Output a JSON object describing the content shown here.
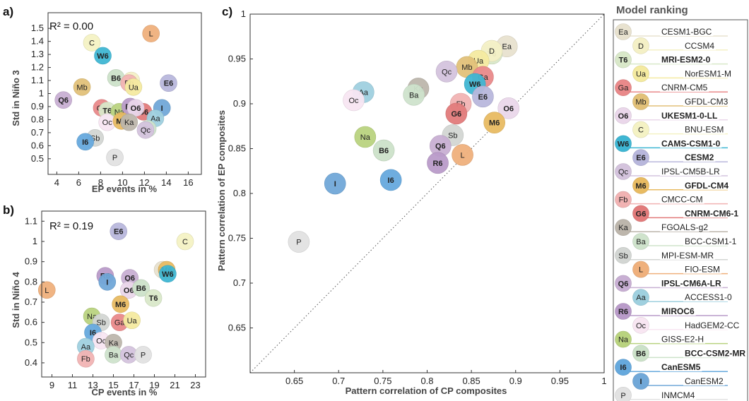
{
  "colors": {
    "Ea": "#e8e2cf",
    "D": "#f4f0c6",
    "T6": "#d9e8c9",
    "Ua": "#f4eaa0",
    "Ga": "#e9898a",
    "Mb": "#e2c179",
    "O6": "#ead7ea",
    "C": "#f4f2c4",
    "W6": "#3fb6d3",
    "E6": "#b8b7dc",
    "Qc": "#d4c3dd",
    "M6": "#e8bb62",
    "Fb": "#f1b3b3",
    "G6": "#e27b7b",
    "Ka": "#bdb6ac",
    "Ba": "#cfe3cc",
    "Sb": "#d3d6d3",
    "L": "#efb07c",
    "Q6": "#c8afd3",
    "Aa": "#9fd0df",
    "R6": "#b99bc9",
    "Oc": "#f8e6f2",
    "Na": "#b9d37f",
    "B6": "#cce2c9",
    "I6": "#66a9dd",
    "I": "#71a8d8",
    "P": "#e2e2e2"
  },
  "legend": {
    "title": "Model ranking",
    "items": [
      {
        "code": "Ea",
        "name": "CESM1-BGC",
        "bold": false
      },
      {
        "code": "D",
        "name": "CCSM4",
        "bold": false
      },
      {
        "code": "T6",
        "name": "MRI-ESM2-0",
        "bold": true
      },
      {
        "code": "Ua",
        "name": "NorESM1-M",
        "bold": false
      },
      {
        "code": "Ga",
        "name": "CNRM-CM5",
        "bold": false
      },
      {
        "code": "Mb",
        "name": "GFDL-CM3",
        "bold": false
      },
      {
        "code": "O6",
        "name": "UKESM1-0-LL",
        "bold": true
      },
      {
        "code": "C",
        "name": "BNU-ESM",
        "bold": false
      },
      {
        "code": "W6",
        "name": "CAMS-CSM1-0",
        "bold": true
      },
      {
        "code": "E6",
        "name": "CESM2",
        "bold": true
      },
      {
        "code": "Qc",
        "name": "IPSL-CM5B-LR",
        "bold": false
      },
      {
        "code": "M6",
        "name": "GFDL-CM4",
        "bold": true
      },
      {
        "code": "Fb",
        "name": "CMCC-CM",
        "bold": false
      },
      {
        "code": "G6",
        "name": "CNRM-CM6-1",
        "bold": true
      },
      {
        "code": "Ka",
        "name": "FGOALS-g2",
        "bold": false
      },
      {
        "code": "Ba",
        "name": "BCC-CSM1-1",
        "bold": false
      },
      {
        "code": "Sb",
        "name": "MPI-ESM-MR",
        "bold": false
      },
      {
        "code": "L",
        "name": "FIO-ESM",
        "bold": false
      },
      {
        "code": "Q6",
        "name": "IPSL-CM6A-LR",
        "bold": true
      },
      {
        "code": "Aa",
        "name": "ACCESS1-0",
        "bold": false
      },
      {
        "code": "R6",
        "name": "MIROC6",
        "bold": true
      },
      {
        "code": "Oc",
        "name": "HadGEM2-CC",
        "bold": false
      },
      {
        "code": "Na",
        "name": "GISS-E2-H",
        "bold": false
      },
      {
        "code": "B6",
        "name": "BCC-CSM2-MR",
        "bold": true
      },
      {
        "code": "I6",
        "name": "CanESM5",
        "bold": true
      },
      {
        "code": "I",
        "name": "CanESM2",
        "bold": false
      },
      {
        "code": "P",
        "name": "INMCM4",
        "bold": false
      }
    ]
  },
  "chart_data": [
    {
      "type": "scatter",
      "panel_label": "a)",
      "annotation": "R² = 0.00",
      "xlabel": "EP events in %",
      "ylabel": "Std in Niño 3",
      "xlim": [
        3.2,
        17.2
      ],
      "ylim": [
        0.38,
        1.62
      ],
      "xticks": [
        4,
        6,
        8,
        10,
        12,
        14,
        16
      ],
      "yticks": [
        0.5,
        0.6,
        0.7,
        0.8,
        0.9,
        1.0,
        1.1,
        1.2,
        1.3,
        1.4,
        1.5
      ],
      "ytick_labels": [
        "0.5",
        "0.6",
        "0.7",
        "0.8",
        "0.9",
        "1",
        "1.1",
        "1.2",
        "1.3",
        "1.4",
        "1.5"
      ],
      "points": [
        {
          "code": "Mb",
          "x": 6.3,
          "y": 1.05
        },
        {
          "code": "Q6",
          "x": 4.6,
          "y": 0.95
        },
        {
          "code": "C",
          "x": 7.2,
          "y": 1.39
        },
        {
          "code": "W6",
          "x": 8.2,
          "y": 1.29
        },
        {
          "code": "L",
          "x": 12.6,
          "y": 1.46
        },
        {
          "code": "B6",
          "x": 9.4,
          "y": 1.12
        },
        {
          "code": "D",
          "x": 10.8,
          "y": 1.1
        },
        {
          "code": "Fb",
          "x": 10.6,
          "y": 1.08
        },
        {
          "code": "Ua",
          "x": 11.0,
          "y": 1.05
        },
        {
          "code": "E6",
          "x": 14.2,
          "y": 1.08
        },
        {
          "code": "Ga",
          "x": 8.1,
          "y": 0.89
        },
        {
          "code": "T6",
          "x": 8.6,
          "y": 0.87
        },
        {
          "code": "Na",
          "x": 9.7,
          "y": 0.86
        },
        {
          "code": "G6",
          "x": 11.9,
          "y": 0.86
        },
        {
          "code": "R6",
          "x": 10.7,
          "y": 0.9
        },
        {
          "code": "O6",
          "x": 11.2,
          "y": 0.89
        },
        {
          "code": "I",
          "x": 13.6,
          "y": 0.89
        },
        {
          "code": "Oc",
          "x": 8.6,
          "y": 0.78
        },
        {
          "code": "M6",
          "x": 9.9,
          "y": 0.79
        },
        {
          "code": "Ka",
          "x": 10.6,
          "y": 0.78
        },
        {
          "code": "Aa",
          "x": 13.0,
          "y": 0.81
        },
        {
          "code": "Ba",
          "x": 12.3,
          "y": 0.73
        },
        {
          "code": "Qc",
          "x": 12.1,
          "y": 0.72
        },
        {
          "code": "Sb",
          "x": 7.5,
          "y": 0.66
        },
        {
          "code": "I6",
          "x": 6.6,
          "y": 0.63
        },
        {
          "code": "P",
          "x": 9.3,
          "y": 0.51
        }
      ]
    },
    {
      "type": "scatter",
      "panel_label": "b)",
      "annotation": "R² = 0.19",
      "xlabel": "CP events in %",
      "ylabel": "Std in Niño 4",
      "xlim": [
        8,
        24
      ],
      "ylim": [
        0.33,
        1.15
      ],
      "xticks": [
        9,
        11,
        13,
        15,
        17,
        19,
        21,
        23
      ],
      "yticks": [
        0.4,
        0.5,
        0.6,
        0.7,
        0.8,
        0.9,
        1.0,
        1.1
      ],
      "ytick_labels": [
        "0.4",
        "0.5",
        "0.6",
        "0.7",
        "0.8",
        "0.9",
        "1",
        "1.1"
      ],
      "points": [
        {
          "code": "E6",
          "x": 15.5,
          "y": 1.05
        },
        {
          "code": "C",
          "x": 22.0,
          "y": 1.0
        },
        {
          "code": "L",
          "x": 8.5,
          "y": 0.76
        },
        {
          "code": "R6",
          "x": 14.2,
          "y": 0.83
        },
        {
          "code": "I",
          "x": 14.4,
          "y": 0.8
        },
        {
          "code": "Q6",
          "x": 16.6,
          "y": 0.82
        },
        {
          "code": "Ea",
          "x": 19.8,
          "y": 0.86
        },
        {
          "code": "M6",
          "x": 20.2,
          "y": 0.86
        },
        {
          "code": "W6",
          "x": 20.3,
          "y": 0.84
        },
        {
          "code": "O6",
          "x": 16.5,
          "y": 0.76
        },
        {
          "code": "B6",
          "x": 17.7,
          "y": 0.77
        },
        {
          "code": "T6",
          "x": 18.9,
          "y": 0.72
        },
        {
          "code": "M6",
          "x": 15.7,
          "y": 0.69
        },
        {
          "code": "Na",
          "x": 12.9,
          "y": 0.63
        },
        {
          "code": "Sb",
          "x": 13.8,
          "y": 0.6
        },
        {
          "code": "Ga",
          "x": 15.6,
          "y": 0.6
        },
        {
          "code": "Ua",
          "x": 16.8,
          "y": 0.61
        },
        {
          "code": "I6",
          "x": 13.0,
          "y": 0.55
        },
        {
          "code": "Oc",
          "x": 13.8,
          "y": 0.51
        },
        {
          "code": "Ka",
          "x": 15.0,
          "y": 0.5
        },
        {
          "code": "Aa",
          "x": 12.3,
          "y": 0.48
        },
        {
          "code": "Ba",
          "x": 15.0,
          "y": 0.44
        },
        {
          "code": "Qc",
          "x": 16.5,
          "y": 0.44
        },
        {
          "code": "P",
          "x": 17.9,
          "y": 0.44
        },
        {
          "code": "Fb",
          "x": 12.3,
          "y": 0.42
        }
      ]
    },
    {
      "type": "scatter",
      "panel_label": "c)",
      "xlabel": "Pattern correlation of CP composites",
      "ylabel": "Pattern correlation of EP composites",
      "xlim": [
        0.6,
        1.0
      ],
      "ylim": [
        0.6,
        1.0
      ],
      "xticks": [
        0.65,
        0.7,
        0.75,
        0.8,
        0.85,
        0.9,
        0.95,
        1.0
      ],
      "xtick_labels": [
        "0.65",
        "0.7",
        "0.75",
        "0.8",
        "0.85",
        "0.9",
        "0.95",
        "1"
      ],
      "yticks": [
        0.65,
        0.7,
        0.75,
        0.8,
        0.85,
        0.9,
        0.95,
        1.0
      ],
      "ytick_labels": [
        "0.65",
        "0.7",
        "0.75",
        "0.8",
        "0.85",
        "0.9",
        "0.95",
        "1"
      ],
      "reference_line": "1:1 dotted",
      "points": [
        {
          "code": "Ea",
          "x": 0.89,
          "y": 0.964
        },
        {
          "code": "T6",
          "x": 0.873,
          "y": 0.956
        },
        {
          "code": "D",
          "x": 0.873,
          "y": 0.959
        },
        {
          "code": "Ua",
          "x": 0.858,
          "y": 0.948
        },
        {
          "code": "Mb",
          "x": 0.845,
          "y": 0.941
        },
        {
          "code": "Qc",
          "x": 0.822,
          "y": 0.936
        },
        {
          "code": "Ga",
          "x": 0.863,
          "y": 0.93
        },
        {
          "code": "W6",
          "x": 0.854,
          "y": 0.922
        },
        {
          "code": "E6",
          "x": 0.863,
          "y": 0.908
        },
        {
          "code": "Fb",
          "x": 0.838,
          "y": 0.9
        },
        {
          "code": "G6",
          "x": 0.833,
          "y": 0.889
        },
        {
          "code": "O6",
          "x": 0.892,
          "y": 0.895
        },
        {
          "code": "M6",
          "x": 0.876,
          "y": 0.879
        },
        {
          "code": "Ka",
          "x": 0.79,
          "y": 0.917
        },
        {
          "code": "Ba",
          "x": 0.785,
          "y": 0.91
        },
        {
          "code": "Aa",
          "x": 0.728,
          "y": 0.913
        },
        {
          "code": "Oc",
          "x": 0.717,
          "y": 0.904
        },
        {
          "code": "Sb",
          "x": 0.829,
          "y": 0.865
        },
        {
          "code": "Na",
          "x": 0.73,
          "y": 0.863
        },
        {
          "code": "B6",
          "x": 0.751,
          "y": 0.848
        },
        {
          "code": "Q6",
          "x": 0.815,
          "y": 0.853
        },
        {
          "code": "L",
          "x": 0.84,
          "y": 0.843
        },
        {
          "code": "R6",
          "x": 0.812,
          "y": 0.834
        },
        {
          "code": "I6",
          "x": 0.759,
          "y": 0.815
        },
        {
          "code": "I",
          "x": 0.696,
          "y": 0.811
        },
        {
          "code": "P",
          "x": 0.655,
          "y": 0.746
        }
      ]
    }
  ]
}
